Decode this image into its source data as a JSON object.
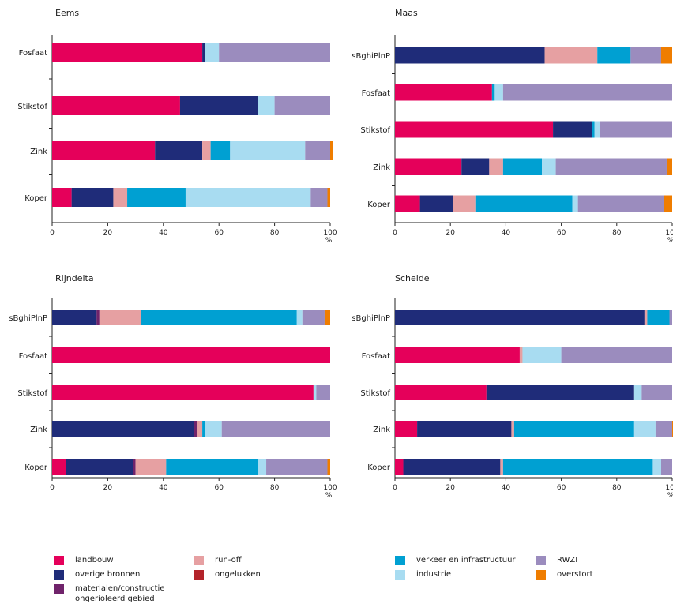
{
  "colors": {
    "landbouw": "#e5005a",
    "overige_bronnen": "#1f2c79",
    "materialen": "#70236b",
    "run_off": "#e6a0a2",
    "ongelukken": "#b3232a",
    "verkeer": "#00a0d2",
    "industrie": "#a8dcf1",
    "rwzi": "#9b8cbe",
    "overstort": "#ef7d00"
  },
  "legend": [
    {
      "key": "landbouw",
      "label": "landbouw"
    },
    {
      "key": "overige_bronnen",
      "label": "overige bronnen"
    },
    {
      "key": "materialen",
      "label": "materialen/constructie",
      "label2": "ongerioleerd gebied"
    },
    {
      "key": "run_off",
      "label": "run-off"
    },
    {
      "key": "ongelukken",
      "label": "ongelukken"
    },
    {
      "key": "verkeer",
      "label": "verkeer en infrastructuur"
    },
    {
      "key": "industrie",
      "label": "industrie"
    },
    {
      "key": "rwzi",
      "label": "RWZI"
    },
    {
      "key": "overstort",
      "label": "overstort"
    }
  ],
  "chart_data": [
    {
      "type": "bar",
      "orientation": "horizontal",
      "stacked": true,
      "title": "Eems",
      "xlabel": "%",
      "xlim": [
        0,
        100
      ],
      "xticks": [
        "0",
        "20",
        "40",
        "60",
        "80",
        "100"
      ],
      "categories": [
        "Fosfaat",
        "Stikstof",
        "Zink",
        "Koper"
      ],
      "series": [
        {
          "key": "landbouw",
          "name": "landbouw",
          "values": [
            54,
            46,
            37,
            7
          ]
        },
        {
          "key": "overige_bronnen",
          "name": "overige bronnen",
          "values": [
            1,
            28,
            17,
            15
          ]
        },
        {
          "key": "materialen",
          "name": "materialen/constructie ongerioleerd gebied",
          "values": [
            0,
            0,
            0,
            0
          ]
        },
        {
          "key": "run_off",
          "name": "run-off",
          "values": [
            0,
            0,
            3,
            5
          ]
        },
        {
          "key": "ongelukken",
          "name": "ongelukken",
          "values": [
            0,
            0,
            0,
            0
          ]
        },
        {
          "key": "verkeer",
          "name": "verkeer en infrastructuur",
          "values": [
            0,
            0,
            7,
            21
          ]
        },
        {
          "key": "industrie",
          "name": "industrie",
          "values": [
            5,
            6,
            27,
            45
          ]
        },
        {
          "key": "rwzi",
          "name": "RWZI",
          "values": [
            40,
            20,
            9,
            6
          ]
        },
        {
          "key": "overstort",
          "name": "overstort",
          "values": [
            0,
            0,
            1,
            1
          ]
        }
      ]
    },
    {
      "type": "bar",
      "orientation": "horizontal",
      "stacked": true,
      "title": "Maas",
      "xlabel": "%",
      "xlim": [
        0,
        100
      ],
      "xticks": [
        "0",
        "20",
        "40",
        "60",
        "80",
        "100"
      ],
      "categories": [
        "sBghiPlnP",
        "Fosfaat",
        "Stikstof",
        "Zink",
        "Koper"
      ],
      "series": [
        {
          "key": "landbouw",
          "name": "landbouw",
          "values": [
            0,
            35,
            57,
            24,
            9
          ]
        },
        {
          "key": "overige_bronnen",
          "name": "overige bronnen",
          "values": [
            54,
            0,
            14,
            10,
            12
          ]
        },
        {
          "key": "materialen",
          "name": "materialen/constructie ongerioleerd gebied",
          "values": [
            0,
            0,
            0,
            0,
            0
          ]
        },
        {
          "key": "run_off",
          "name": "run-off",
          "values": [
            19,
            0,
            0,
            5,
            8
          ]
        },
        {
          "key": "ongelukken",
          "name": "ongelukken",
          "values": [
            0,
            0,
            0,
            0,
            0
          ]
        },
        {
          "key": "verkeer",
          "name": "verkeer en infrastructuur",
          "values": [
            12,
            1,
            1,
            14,
            35
          ]
        },
        {
          "key": "industrie",
          "name": "industrie",
          "values": [
            0,
            3,
            2,
            5,
            2
          ]
        },
        {
          "key": "rwzi",
          "name": "RWZI",
          "values": [
            11,
            61,
            26,
            40,
            31
          ]
        },
        {
          "key": "overstort",
          "name": "overstort",
          "values": [
            4,
            0,
            0,
            2,
            3
          ]
        }
      ]
    },
    {
      "type": "bar",
      "orientation": "horizontal",
      "stacked": true,
      "title": "Rijndelta",
      "xlabel": "%",
      "xlim": [
        0,
        100
      ],
      "xticks": [
        "0",
        "20",
        "40",
        "60",
        "80",
        "100"
      ],
      "categories": [
        "sBghiPlnP",
        "Fosfaat",
        "Stikstof",
        "Zink",
        "Koper"
      ],
      "series": [
        {
          "key": "landbouw",
          "name": "landbouw",
          "values": [
            0,
            100,
            94,
            0,
            5
          ]
        },
        {
          "key": "overige_bronnen",
          "name": "overige bronnen",
          "values": [
            16,
            0,
            0,
            51,
            24
          ]
        },
        {
          "key": "materialen",
          "name": "materialen/constructie ongerioleerd gebied",
          "values": [
            1,
            0,
            0,
            1,
            1
          ]
        },
        {
          "key": "run_off",
          "name": "run-off",
          "values": [
            15,
            0,
            0,
            2,
            11
          ]
        },
        {
          "key": "ongelukken",
          "name": "ongelukken",
          "values": [
            0,
            0,
            0,
            0,
            0
          ]
        },
        {
          "key": "verkeer",
          "name": "verkeer en infrastructuur",
          "values": [
            56,
            0,
            0,
            1,
            33
          ]
        },
        {
          "key": "industrie",
          "name": "industrie",
          "values": [
            2,
            0,
            1,
            6,
            3
          ]
        },
        {
          "key": "rwzi",
          "name": "RWZI",
          "values": [
            8,
            0,
            5,
            39,
            22
          ]
        },
        {
          "key": "overstort",
          "name": "overstort",
          "values": [
            2,
            0,
            0,
            0,
            1
          ]
        }
      ]
    },
    {
      "type": "bar",
      "orientation": "horizontal",
      "stacked": true,
      "title": "Schelde",
      "xlabel": "%",
      "xlim": [
        0,
        100
      ],
      "xticks": [
        "0",
        "20",
        "40",
        "60",
        "80",
        "100"
      ],
      "categories": [
        "sBghiPlnP",
        "Fosfaat",
        "Stikstof",
        "Zink",
        "Koper"
      ],
      "series": [
        {
          "key": "landbouw",
          "name": "landbouw",
          "values": [
            0,
            45,
            33,
            8,
            3
          ]
        },
        {
          "key": "overige_bronnen",
          "name": "overige bronnen",
          "values": [
            90,
            0,
            53,
            34,
            35
          ]
        },
        {
          "key": "materialen",
          "name": "materialen/constructie ongerioleerd gebied",
          "values": [
            0,
            0,
            0,
            0,
            0
          ]
        },
        {
          "key": "run_off",
          "name": "run-off",
          "values": [
            1,
            1,
            0,
            1,
            1
          ]
        },
        {
          "key": "ongelukken",
          "name": "ongelukken",
          "values": [
            0,
            0,
            0,
            0,
            0
          ]
        },
        {
          "key": "verkeer",
          "name": "verkeer en infrastructuur",
          "values": [
            8,
            0,
            0,
            43,
            54
          ]
        },
        {
          "key": "industrie",
          "name": "industrie",
          "values": [
            0,
            14,
            3,
            8,
            3
          ]
        },
        {
          "key": "rwzi",
          "name": "RWZI",
          "values": [
            1,
            40,
            11,
            6,
            4
          ]
        },
        {
          "key": "overstort",
          "name": "overstort",
          "values": [
            0,
            0,
            0,
            1,
            0
          ]
        }
      ]
    }
  ]
}
